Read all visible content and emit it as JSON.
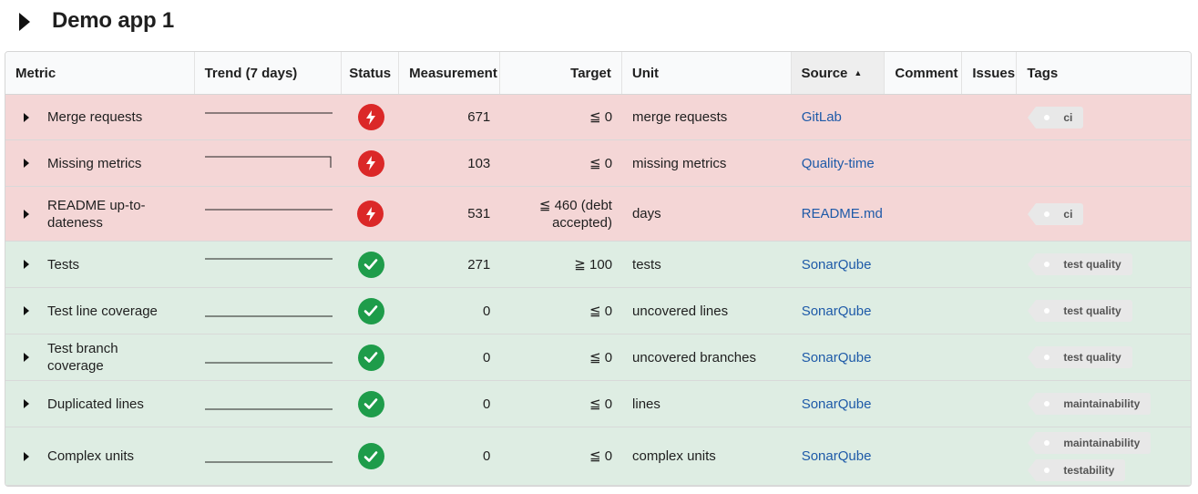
{
  "subject": {
    "title": "Demo app 1"
  },
  "columns": {
    "metric": "Metric",
    "trend": "Trend (7 days)",
    "status": "Status",
    "measurement": "Measurement",
    "target": "Target",
    "unit": "Unit",
    "source": "Source",
    "comment": "Comment",
    "issues": "Issues",
    "tags": "Tags"
  },
  "colors": {
    "red_row": "#f4d6d6",
    "green_row": "#deede3",
    "bad": "#db2828",
    "good": "#1e9c4a",
    "link": "#1e5aa8"
  },
  "rows": [
    {
      "name": "Merge requests",
      "status": "bad",
      "measurement": "671",
      "target": "≦ 0",
      "unit": "merge requests",
      "source": "GitLab",
      "tags": [
        "ci"
      ]
    },
    {
      "name": "Missing metrics",
      "status": "bad",
      "measurement": "103",
      "target": "≦ 0",
      "unit": "missing metrics",
      "source": "Quality-time",
      "tags": []
    },
    {
      "name": "README up-to-dateness",
      "status": "bad",
      "measurement": "531",
      "target": "≦ 460 (debt accepted)",
      "unit": "days",
      "source": "README.md",
      "tags": [
        "ci"
      ]
    },
    {
      "name": "Tests",
      "status": "good",
      "measurement": "271",
      "target": "≧ 100",
      "unit": "tests",
      "source": "SonarQube",
      "tags": [
        "test quality"
      ]
    },
    {
      "name": "Test line coverage",
      "status": "good",
      "measurement": "0",
      "target": "≦ 0",
      "unit": "uncovered lines",
      "source": "SonarQube",
      "tags": [
        "test quality"
      ]
    },
    {
      "name": "Test branch coverage",
      "status": "good",
      "measurement": "0",
      "target": "≦ 0",
      "unit": "uncovered branches",
      "source": "SonarQube",
      "tags": [
        "test quality"
      ]
    },
    {
      "name": "Duplicated lines",
      "status": "good",
      "measurement": "0",
      "target": "≦ 0",
      "unit": "lines",
      "source": "SonarQube",
      "tags": [
        "maintainability"
      ]
    },
    {
      "name": "Complex units",
      "status": "good",
      "measurement": "0",
      "target": "≦ 0",
      "unit": "complex units",
      "source": "SonarQube",
      "tags": [
        "maintainability",
        "testability"
      ]
    }
  ]
}
